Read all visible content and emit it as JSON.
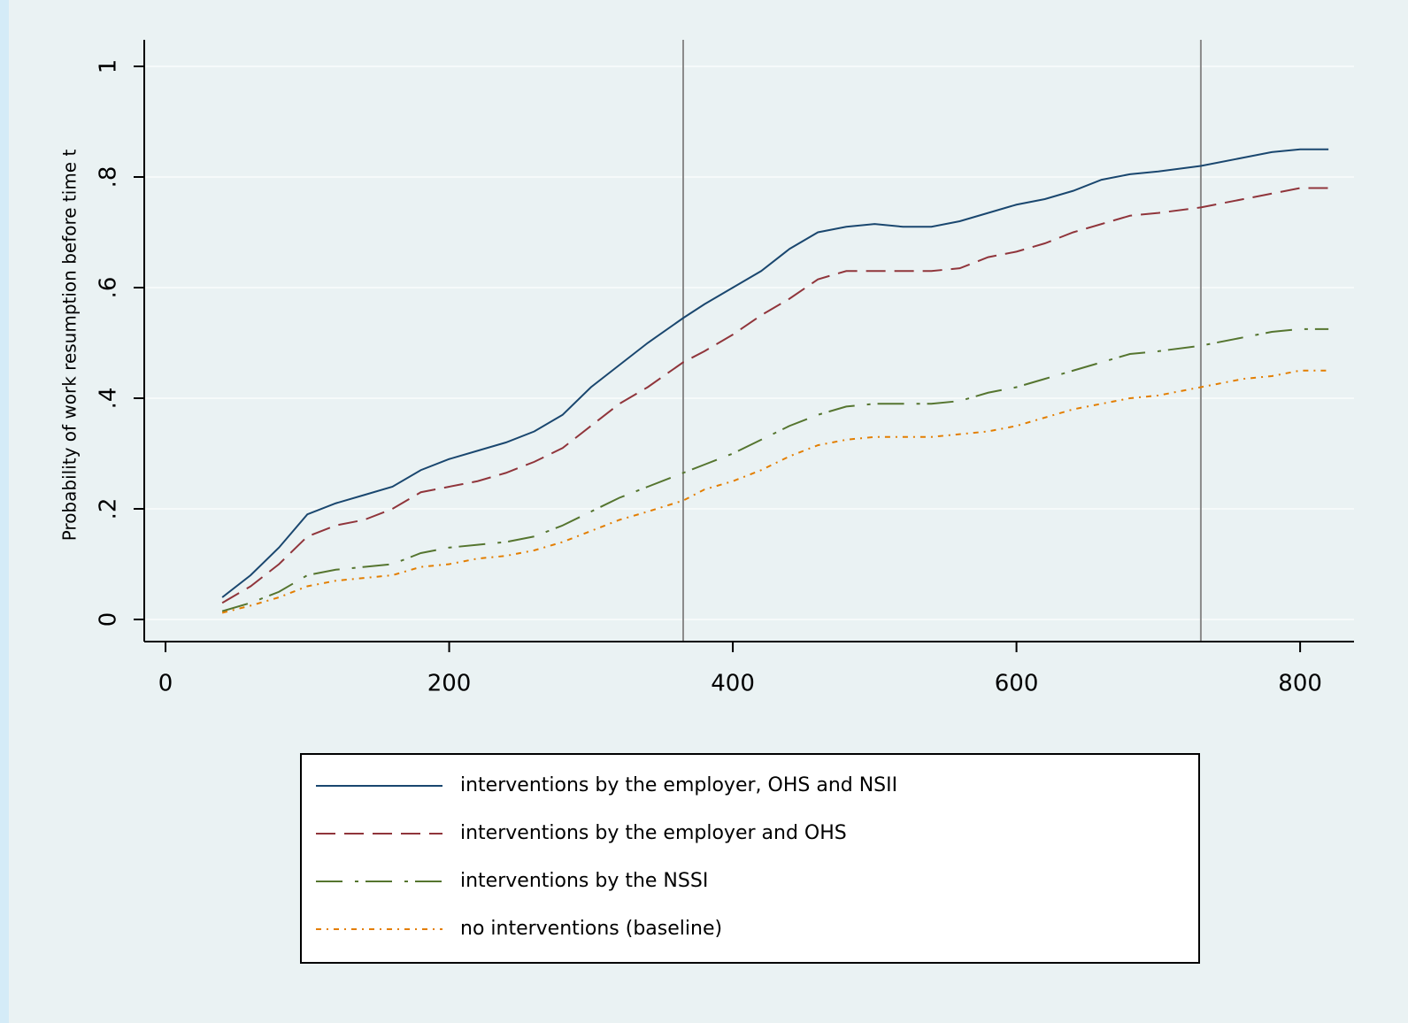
{
  "chart_data": {
    "type": "line",
    "y_label": "Probability of work resumption before time t",
    "x": [
      40,
      60,
      80,
      100,
      120,
      140,
      160,
      180,
      200,
      220,
      240,
      260,
      280,
      300,
      320,
      340,
      365,
      380,
      400,
      420,
      440,
      460,
      480,
      500,
      520,
      540,
      560,
      580,
      600,
      620,
      640,
      660,
      680,
      700,
      730,
      760,
      780,
      800,
      820
    ],
    "series": [
      {
        "name": "interventions by the employer, OHS and NSII",
        "color": "#1a476f",
        "values": [
          0.04,
          0.08,
          0.13,
          0.19,
          0.21,
          0.225,
          0.24,
          0.27,
          0.29,
          0.305,
          0.32,
          0.34,
          0.37,
          0.42,
          0.46,
          0.5,
          0.545,
          0.57,
          0.6,
          0.63,
          0.67,
          0.7,
          0.71,
          0.715,
          0.71,
          0.71,
          0.72,
          0.735,
          0.75,
          0.76,
          0.775,
          0.795,
          0.805,
          0.81,
          0.82,
          0.835,
          0.845,
          0.85,
          0.85
        ]
      },
      {
        "name": "interventions by the employer and OHS",
        "color": "#90353b",
        "values": [
          0.03,
          0.06,
          0.1,
          0.15,
          0.17,
          0.18,
          0.2,
          0.23,
          0.24,
          0.25,
          0.265,
          0.285,
          0.31,
          0.35,
          0.39,
          0.42,
          0.465,
          0.485,
          0.515,
          0.55,
          0.58,
          0.615,
          0.63,
          0.63,
          0.63,
          0.63,
          0.635,
          0.655,
          0.665,
          0.68,
          0.7,
          0.715,
          0.73,
          0.735,
          0.745,
          0.76,
          0.77,
          0.78,
          0.78
        ]
      },
      {
        "name": "interventions by the NSSI",
        "color": "#55752f",
        "values": [
          0.015,
          0.03,
          0.05,
          0.08,
          0.09,
          0.095,
          0.1,
          0.12,
          0.13,
          0.135,
          0.14,
          0.15,
          0.17,
          0.195,
          0.22,
          0.24,
          0.265,
          0.28,
          0.3,
          0.325,
          0.35,
          0.37,
          0.385,
          0.39,
          0.39,
          0.39,
          0.395,
          0.41,
          0.42,
          0.435,
          0.45,
          0.465,
          0.48,
          0.485,
          0.495,
          0.51,
          0.52,
          0.525,
          0.525
        ]
      },
      {
        "name": "no interventions (baseline)",
        "color": "#e37e00",
        "values": [
          0.012,
          0.025,
          0.04,
          0.06,
          0.07,
          0.075,
          0.08,
          0.095,
          0.1,
          0.11,
          0.115,
          0.125,
          0.14,
          0.16,
          0.18,
          0.195,
          0.215,
          0.235,
          0.25,
          0.27,
          0.295,
          0.315,
          0.325,
          0.33,
          0.33,
          0.33,
          0.335,
          0.34,
          0.35,
          0.365,
          0.38,
          0.39,
          0.4,
          0.405,
          0.42,
          0.435,
          0.44,
          0.45,
          0.45
        ]
      }
    ],
    "xlim": [
      -15,
      838
    ],
    "xticks": [
      0,
      200,
      400,
      600,
      800
    ],
    "ylim": [
      -0.04,
      1.048
    ],
    "yticks": [
      {
        "value": 0,
        "label": "0"
      },
      {
        "value": 0.2,
        "label": ".2"
      },
      {
        "value": 0.4,
        "label": ".4"
      },
      {
        "value": 0.6,
        "label": ".6"
      },
      {
        "value": 0.8,
        "label": ".8"
      },
      {
        "value": 1,
        "label": "1"
      }
    ],
    "xlines": [
      365,
      730
    ],
    "grid": true
  }
}
